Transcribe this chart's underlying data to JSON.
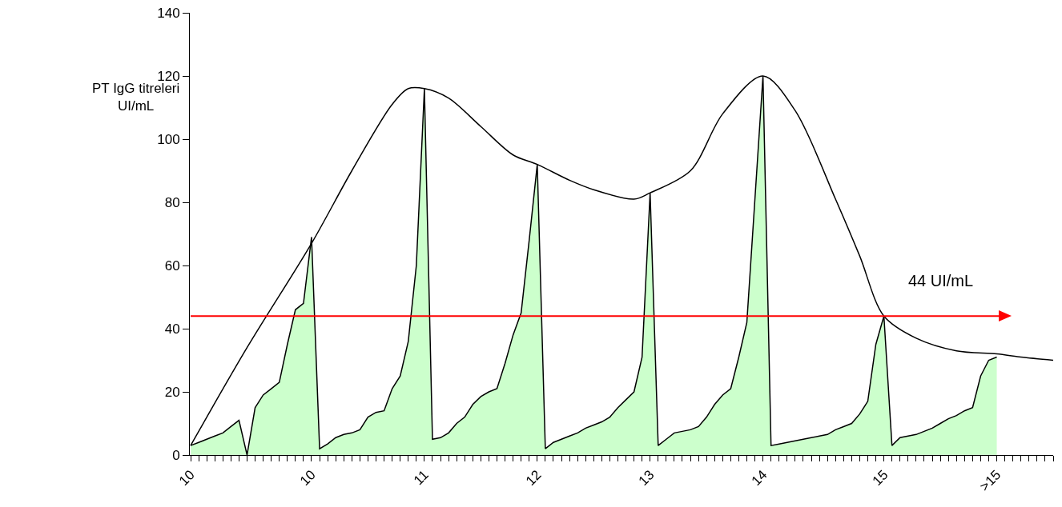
{
  "chart_data": {
    "type": "area",
    "ylabel": "PT IgG titreleri\nUI/mL",
    "categories": [
      "10",
      null,
      null,
      null,
      null,
      null,
      null,
      null,
      null,
      null,
      null,
      null,
      null,
      null,
      null,
      "10",
      null,
      null,
      null,
      null,
      null,
      null,
      null,
      null,
      null,
      null,
      null,
      null,
      null,
      "11",
      null,
      null,
      null,
      null,
      null,
      null,
      null,
      null,
      null,
      null,
      null,
      null,
      null,
      "12",
      null,
      null,
      null,
      null,
      null,
      null,
      null,
      null,
      null,
      null,
      null,
      null,
      null,
      "13",
      null,
      null,
      null,
      null,
      null,
      null,
      null,
      null,
      null,
      null,
      null,
      null,
      null,
      "14",
      null,
      null,
      null,
      null,
      null,
      null,
      null,
      null,
      null,
      null,
      null,
      null,
      null,
      null,
      "15",
      null,
      null,
      null,
      null,
      null,
      null,
      null,
      null,
      null,
      null,
      null,
      null,
      null,
      ">15",
      null,
      null,
      null,
      null,
      null,
      null,
      null
    ],
    "series": [
      {
        "color": "#ccffcc",
        "values": [
          3,
          4,
          5,
          6,
          7,
          9,
          11,
          0,
          15,
          19,
          21,
          23,
          35,
          46,
          48,
          69,
          2,
          3.5,
          5.5,
          6.5,
          7,
          8,
          12,
          13.5,
          14,
          21,
          25,
          36,
          60,
          116,
          5,
          5.5,
          7,
          10,
          12,
          16,
          18.5,
          20,
          21,
          29,
          38,
          45,
          68,
          92,
          2,
          4,
          5,
          6,
          7,
          8.5,
          9.5,
          10.5,
          12,
          15,
          17.5,
          20,
          31,
          83,
          3,
          5,
          7,
          7.5,
          8,
          9,
          12,
          16,
          19,
          21,
          31,
          42,
          81,
          120,
          3,
          3.5,
          4,
          4.5,
          5,
          5.5,
          6,
          6.5,
          8,
          9,
          10,
          13,
          17,
          35,
          44,
          3,
          5.5,
          6,
          6.5,
          7.5,
          8.5,
          10,
          11.5,
          12.5,
          14,
          15,
          25,
          30,
          31,
          null,
          null,
          null,
          null,
          null,
          null,
          null
        ]
      },
      {
        "type": "line",
        "color": "#000000",
        "values": [
          3,
          null,
          null,
          null,
          null,
          null,
          null,
          34,
          null,
          null,
          null,
          null,
          null,
          null,
          null,
          67,
          null,
          null,
          null,
          null,
          90,
          null,
          null,
          null,
          null,
          111,
          null,
          116,
          null,
          116,
          null,
          null,
          113,
          null,
          null,
          null,
          104,
          null,
          null,
          null,
          95,
          null,
          null,
          92,
          null,
          null,
          null,
          87,
          null,
          null,
          84,
          null,
          null,
          null,
          null,
          81,
          null,
          83,
          null,
          null,
          null,
          null,
          90,
          null,
          null,
          null,
          108,
          null,
          null,
          null,
          null,
          120,
          null,
          null,
          null,
          109,
          null,
          null,
          null,
          null,
          81,
          null,
          null,
          63,
          null,
          null,
          44,
          null,
          null,
          null,
          37,
          null,
          null,
          null,
          null,
          33,
          null,
          null,
          null,
          null,
          32,
          null,
          null,
          31,
          null,
          null,
          null,
          30
        ]
      }
    ],
    "ylim": [
      0,
      140
    ],
    "yticks": [
      0,
      20,
      40,
      60,
      80,
      100,
      120,
      140
    ],
    "ref_lines": [
      {
        "axis": "y",
        "value": 44,
        "label": "44 UI/mL",
        "color": "#ff0000"
      }
    ],
    "grid": false,
    "legend": false,
    "marker": "none"
  }
}
